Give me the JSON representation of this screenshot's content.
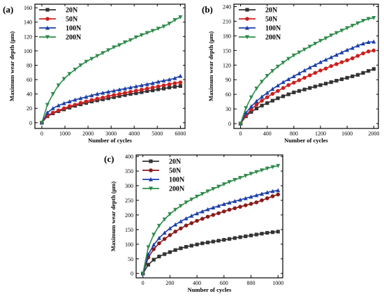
{
  "chart_data": [
    {
      "type": "line",
      "panel_label": "(a)",
      "xlabel": "Number of cycles",
      "ylabel": "Maximum wear depth (μm)",
      "xlim": [
        -300,
        6200
      ],
      "ylim": [
        -8,
        165
      ],
      "xticks": [
        0,
        1000,
        2000,
        3000,
        4000,
        5000,
        6000
      ],
      "yticks": [
        0,
        20,
        40,
        60,
        80,
        100,
        120,
        140,
        160
      ],
      "legend_position": "top-left",
      "x": [
        0,
        240,
        480,
        720,
        960,
        1200,
        1440,
        1680,
        1920,
        2160,
        2400,
        2640,
        2880,
        3120,
        3360,
        3600,
        3840,
        4080,
        4320,
        4560,
        4800,
        5040,
        5280,
        5520,
        5760,
        6000
      ],
      "series": [
        {
          "name": "20N",
          "color": "#333333",
          "marker": "square",
          "values": [
            0,
            9,
            13,
            16,
            18.5,
            21,
            23.5,
            25.5,
            27.5,
            29.5,
            31,
            32.5,
            34,
            35.5,
            37,
            38.5,
            40,
            41,
            42.5,
            44,
            45,
            46.5,
            47.5,
            49,
            50,
            51
          ]
        },
        {
          "name": "50N",
          "color": "#cc1f1f",
          "marker": "circle",
          "values": [
            0,
            10,
            14,
            17,
            20,
            23,
            25,
            27.5,
            29.5,
            31.5,
            33.5,
            35,
            37,
            38.5,
            40,
            41.5,
            43,
            44.5,
            46,
            47.5,
            49,
            50.5,
            52,
            53.5,
            55,
            56
          ]
        },
        {
          "name": "100N",
          "color": "#1c3fa8",
          "marker": "triangle-up",
          "values": [
            0,
            14,
            20,
            24,
            27,
            29.5,
            32,
            34,
            36,
            38,
            40,
            41.5,
            43,
            44.5,
            46,
            47.5,
            49,
            50.5,
            52,
            53.5,
            55,
            57,
            58.5,
            60,
            62,
            65
          ]
        },
        {
          "name": "200N",
          "color": "#2e8b4a",
          "marker": "triangle-down",
          "values": [
            0,
            25,
            40,
            52,
            61,
            68,
            74,
            80,
            85,
            89,
            93,
            97,
            101,
            105,
            108,
            112,
            115,
            119,
            122,
            125,
            128,
            131,
            134,
            138,
            143,
            147
          ]
        }
      ]
    },
    {
      "type": "line",
      "panel_label": "(b)",
      "xlabel": "Number of cycles",
      "ylabel": "Maximum wear depth (μm)",
      "xlim": [
        -100,
        2070
      ],
      "ylim": [
        -10,
        245
      ],
      "xticks": [
        0,
        400,
        800,
        1200,
        1600,
        2000
      ],
      "yticks": [
        0,
        30,
        60,
        90,
        120,
        150,
        180,
        210,
        240
      ],
      "legend_position": "top-left",
      "x": [
        0,
        80,
        160,
        240,
        320,
        400,
        480,
        560,
        640,
        720,
        800,
        880,
        960,
        1040,
        1120,
        1200,
        1280,
        1360,
        1440,
        1520,
        1600,
        1680,
        1760,
        1840,
        1920,
        2000
      ],
      "series": [
        {
          "name": "20N",
          "color": "#333333",
          "marker": "square",
          "values": [
            0,
            15,
            24,
            31,
            37,
            42,
            47,
            52,
            56,
            60,
            64,
            67,
            70,
            73,
            76,
            79,
            82,
            85,
            88,
            91,
            94,
            97,
            100,
            104,
            108,
            112
          ]
        },
        {
          "name": "50N",
          "color": "#cc1f1f",
          "marker": "circle",
          "values": [
            0,
            17,
            29,
            39,
            47,
            54,
            61,
            67,
            73,
            79,
            84,
            89,
            94,
            99,
            104,
            109,
            113,
            118,
            122,
            126,
            130,
            134,
            139,
            144,
            148,
            150
          ]
        },
        {
          "name": "100N",
          "color": "#1c3fa8",
          "marker": "triangle-up",
          "values": [
            0,
            22,
            35,
            46,
            55,
            63,
            71,
            78,
            85,
            91,
            97,
            103,
            109,
            115,
            120,
            126,
            131,
            136,
            141,
            146,
            151,
            155,
            160,
            164,
            167,
            168
          ]
        },
        {
          "name": "200N",
          "color": "#2e8b4a",
          "marker": "triangle-down",
          "values": [
            0,
            32,
            54,
            72,
            86,
            98,
            108,
            117,
            125,
            133,
            140,
            146,
            152,
            158,
            164,
            170,
            175,
            181,
            186,
            191,
            196,
            201,
            206,
            211,
            215,
            217
          ]
        }
      ]
    },
    {
      "type": "line",
      "panel_label": "(c)",
      "xlabel": "Number of cycles",
      "ylabel": "Maximum wear depth (μm)",
      "xlim": [
        -50,
        1035
      ],
      "ylim": [
        -15,
        405
      ],
      "xticks": [
        0,
        200,
        400,
        600,
        800,
        1000
      ],
      "yticks": [
        0,
        50,
        100,
        150,
        200,
        250,
        300,
        350,
        400
      ],
      "legend_position": "top-left",
      "x": [
        0,
        40,
        80,
        120,
        160,
        200,
        240,
        280,
        320,
        360,
        400,
        440,
        480,
        520,
        560,
        600,
        640,
        680,
        720,
        760,
        800,
        840,
        880,
        920,
        960,
        1000
      ],
      "series": [
        {
          "name": "20N",
          "color": "#333333",
          "marker": "square",
          "values": [
            0,
            30,
            47,
            58,
            66,
            73,
            80,
            86,
            91,
            95,
            99,
            103,
            106,
            109,
            112,
            115,
            118,
            121,
            124,
            127,
            130,
            133,
            136,
            139,
            141,
            143
          ]
        },
        {
          "name": "50N",
          "color": "#8b1a1a",
          "marker": "circle",
          "values": [
            0,
            55,
            83,
            103,
            118,
            131,
            143,
            154,
            164,
            172,
            180,
            187,
            194,
            200,
            206,
            212,
            218,
            223,
            228,
            233,
            238,
            243,
            250,
            257,
            264,
            270
          ]
        },
        {
          "name": "100N",
          "color": "#1c3fa8",
          "marker": "triangle-up",
          "values": [
            0,
            65,
            98,
            121,
            139,
            154,
            167,
            178,
            188,
            197,
            205,
            212,
            219,
            225,
            231,
            237,
            242,
            247,
            252,
            257,
            262,
            267,
            272,
            277,
            281,
            284
          ]
        },
        {
          "name": "200N",
          "color": "#2e8b4a",
          "marker": "triangle-down",
          "values": [
            0,
            90,
            133,
            163,
            185,
            203,
            218,
            231,
            243,
            253,
            263,
            272,
            281,
            289,
            297,
            305,
            313,
            320,
            327,
            334,
            341,
            347,
            353,
            359,
            364,
            368
          ]
        }
      ]
    }
  ]
}
